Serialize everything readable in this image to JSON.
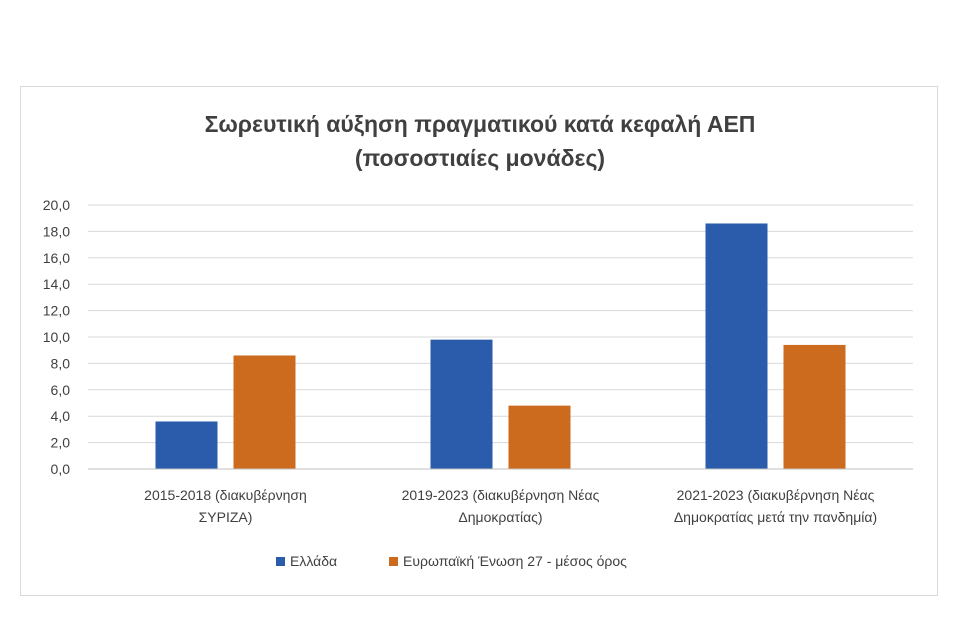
{
  "chart_data": {
    "type": "bar",
    "title": [
      "Σωρευτική αύξηση πραγματικού κατά κεφαλή ΑΕΠ",
      "(ποσοστιαίες μονάδες)"
    ],
    "categories": [
      [
        "2015-2018 (διακυβέρνηση",
        "ΣΥΡΙΖΑ)"
      ],
      [
        "2019-2023 (διακυβέρνηση Νέας",
        "Δημοκρατίας)"
      ],
      [
        "2021-2023 (διακυβέρνηση Νέας",
        "Δημοκρατίας μετά την πανδημία)"
      ]
    ],
    "series": [
      {
        "name": "Ελλάδα",
        "color": "#2b5bab",
        "values": [
          3.6,
          9.8,
          18.6
        ]
      },
      {
        "name": "Ευρωπαϊκή Ένωση 27 - μέσος όρος",
        "color": "#cc6a1e",
        "values": [
          8.6,
          4.8,
          9.4
        ]
      }
    ],
    "ylim": [
      0,
      20
    ],
    "yticks": [
      "0,0",
      "2,0",
      "4,0",
      "6,0",
      "8,0",
      "10,0",
      "12,0",
      "14,0",
      "16,0",
      "18,0",
      "20,0"
    ],
    "grid": true,
    "legend": "bottom",
    "xlabel": "",
    "ylabel": ""
  }
}
